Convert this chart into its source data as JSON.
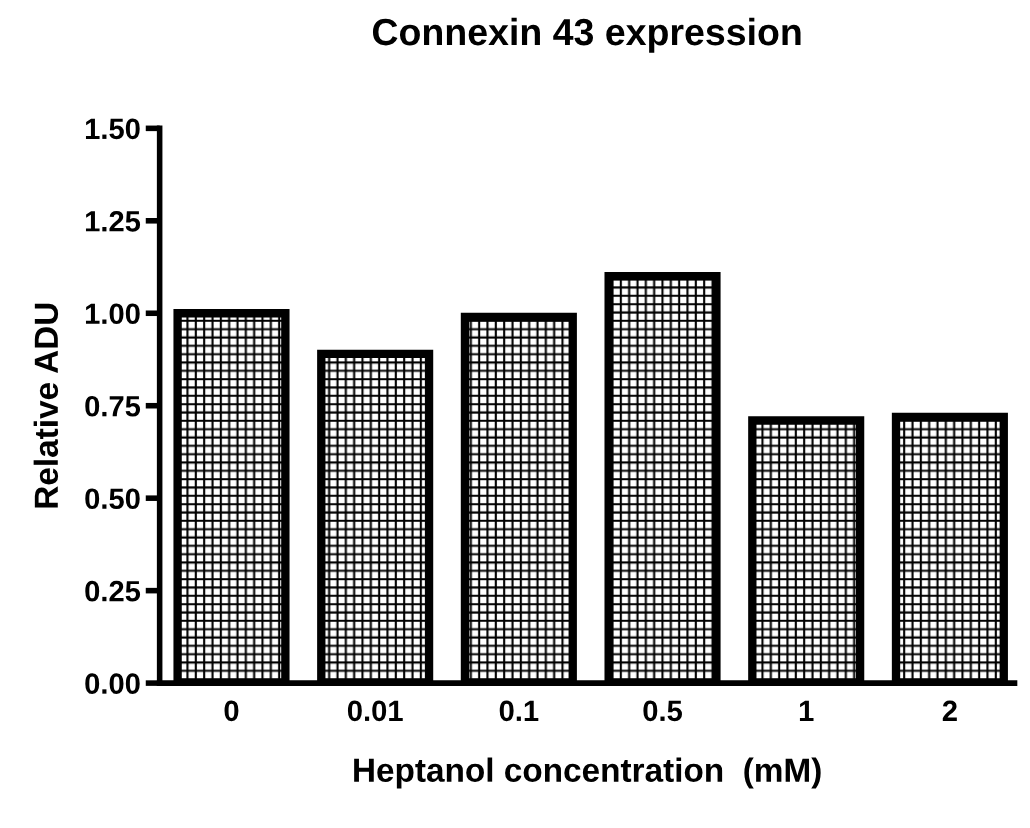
{
  "chart_data": {
    "type": "bar",
    "title": "Connexin 43 expression",
    "xlabel": "Heptanol concentration  (mM)",
    "ylabel": "Relative ADU",
    "categories": [
      "0",
      "0.01",
      "0.1",
      "0.5",
      "1",
      "2"
    ],
    "values": [
      1.0,
      0.89,
      0.99,
      1.1,
      0.71,
      0.72
    ],
    "color": "#000000",
    "ylim": [
      0,
      1.5
    ],
    "yticks": [
      {
        "value": 0,
        "label": "0.00"
      },
      {
        "value": 0.25,
        "label": "0.25"
      },
      {
        "value": 0.5,
        "label": "0.50"
      },
      {
        "value": 0.75,
        "label": "0.75"
      },
      {
        "value": 1.0,
        "label": "1.00"
      },
      {
        "value": 1.25,
        "label": "1.25"
      },
      {
        "value": 1.5,
        "label": "1.50"
      }
    ],
    "grid": false,
    "legend": false
  }
}
